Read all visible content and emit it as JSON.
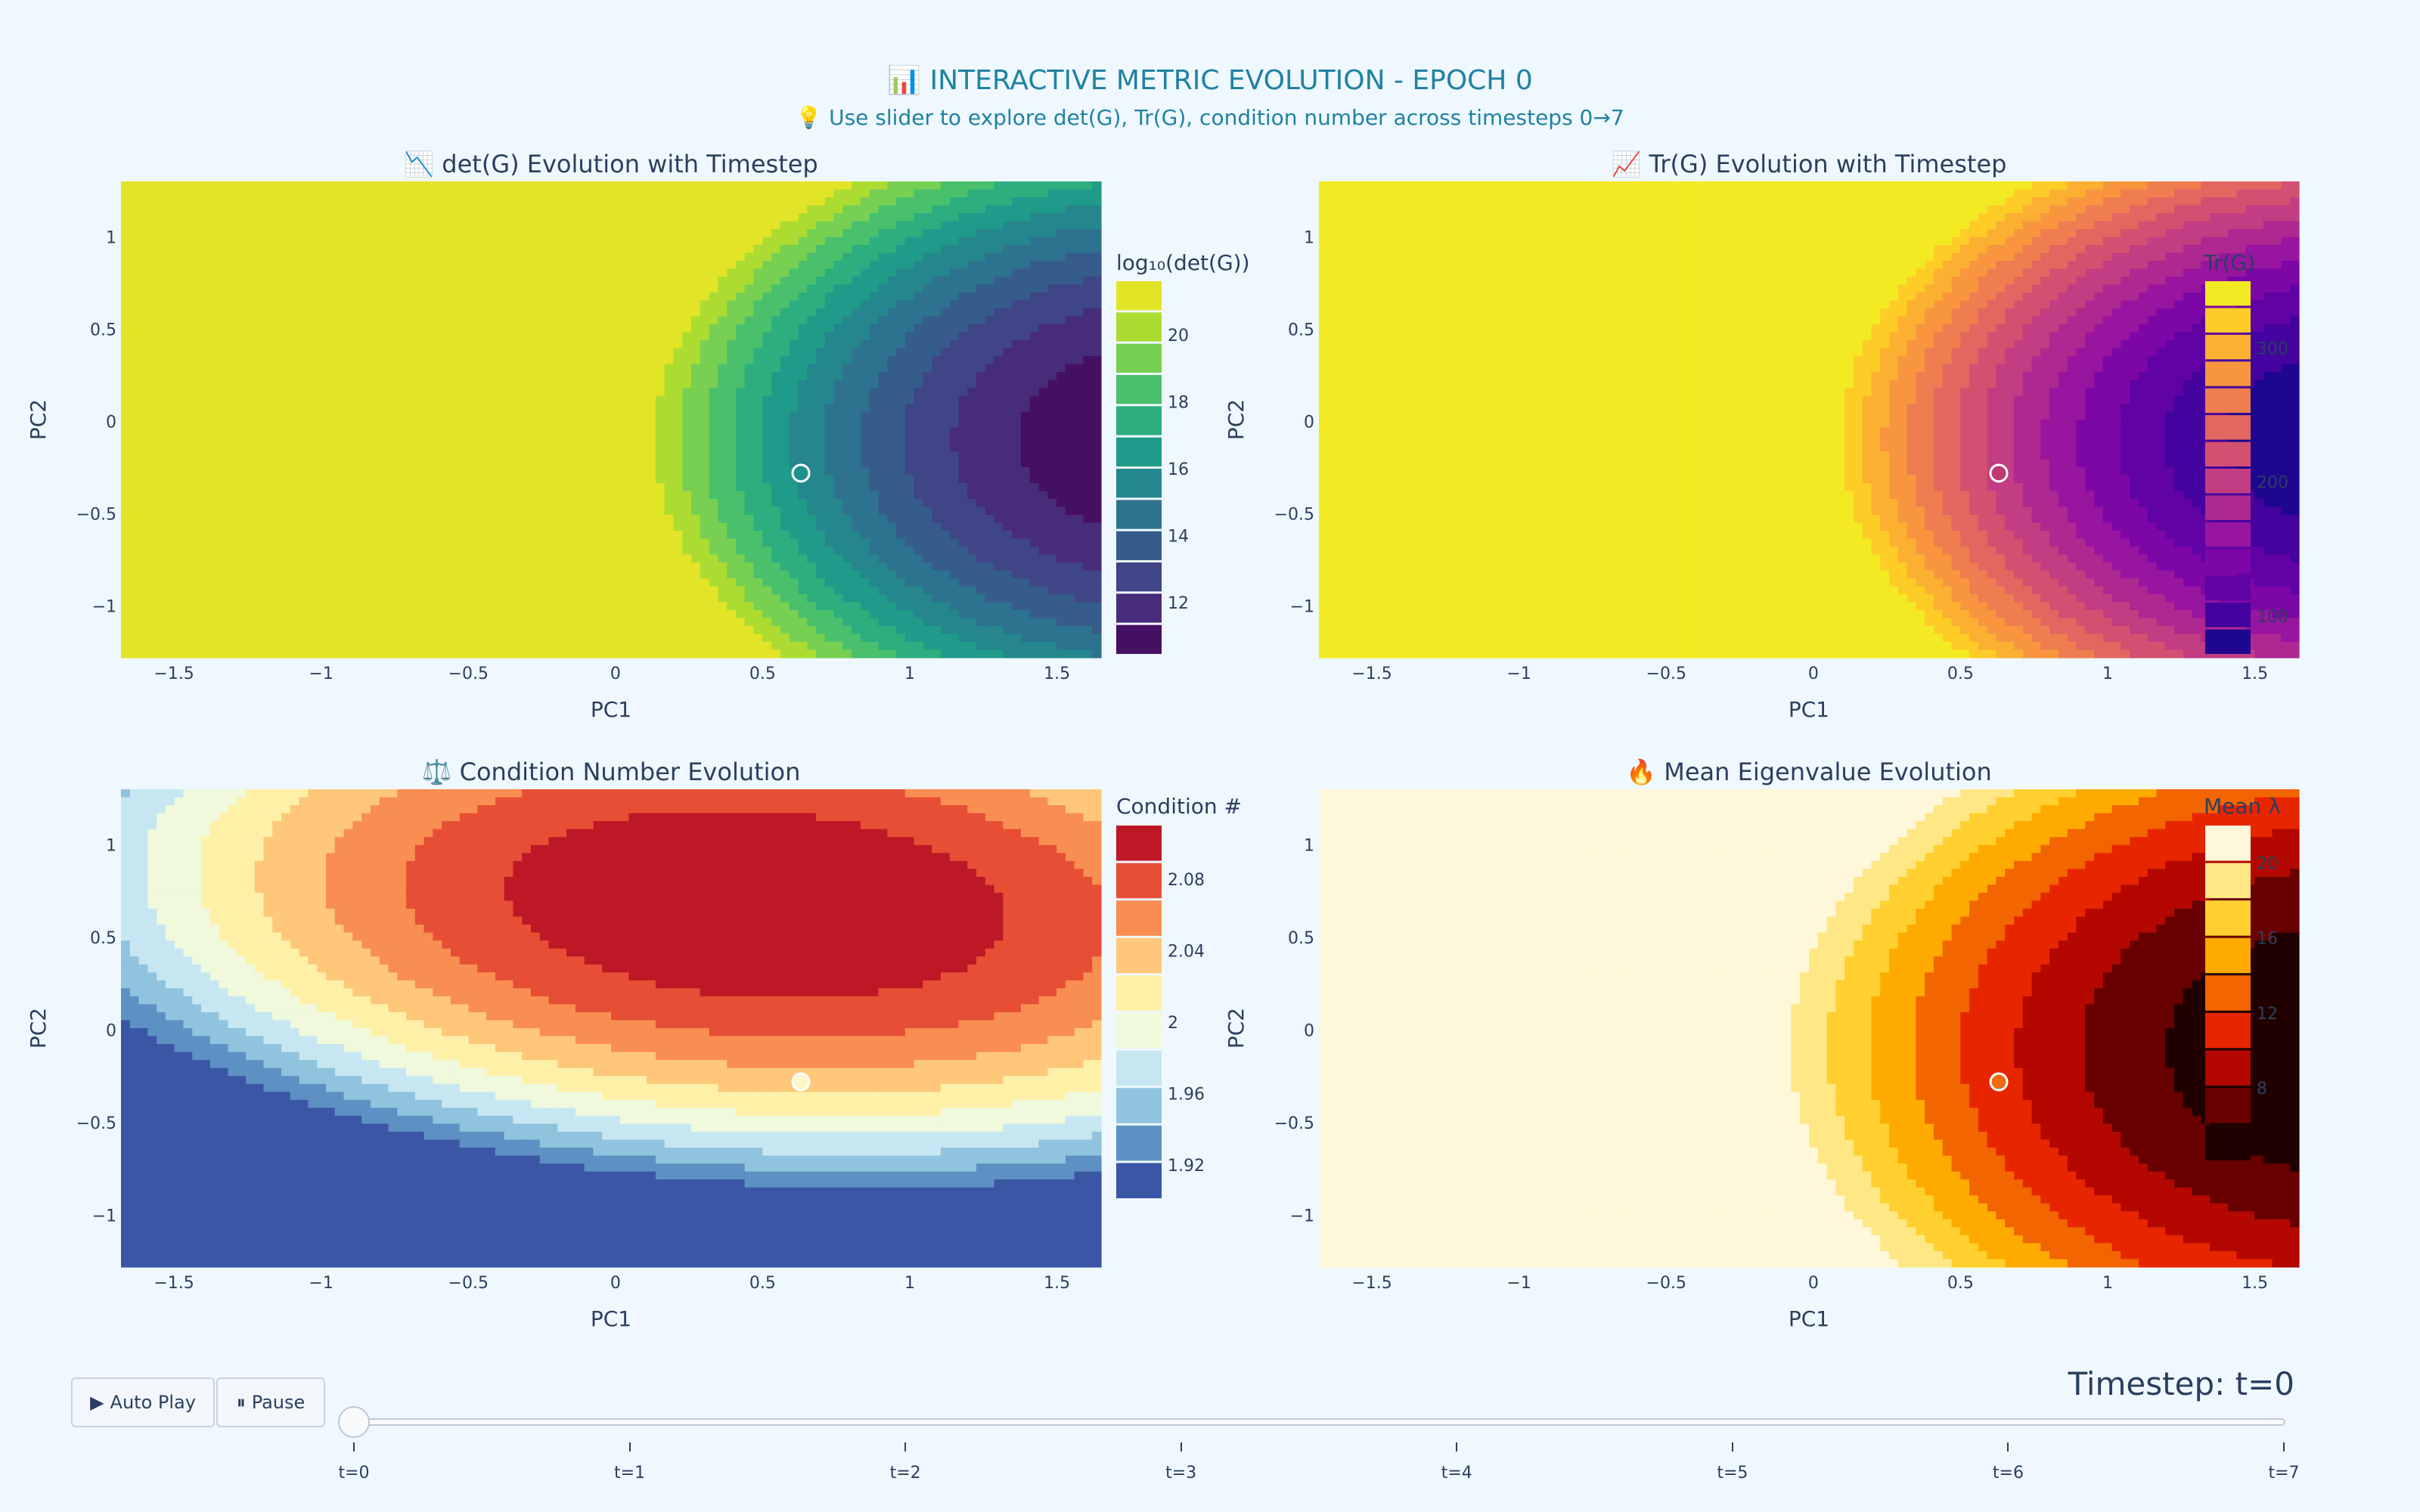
{
  "header": {
    "title": "📊 INTERACTIVE METRIC EVOLUTION - EPOCH 0",
    "subtitle": "💡 Use slider to explore det(G), Tr(G), condition number across timesteps 0→7"
  },
  "controls": {
    "play_icon": "▶",
    "play_label": "Auto Play",
    "pause_icon": "⏸",
    "pause_label": "Pause"
  },
  "slider": {
    "current_value_label": "Timestep: t=0",
    "current_index": 0,
    "steps": [
      "t=0",
      "t=1",
      "t=2",
      "t=3",
      "t=4",
      "t=5",
      "t=6",
      "t=7"
    ]
  },
  "chart_data": [
    {
      "type": "contour",
      "title": "📉 det(G) Evolution with Timestep",
      "xlabel": "PC1",
      "ylabel": "PC2",
      "xlim": [
        -1.68,
        1.65
      ],
      "ylim": [
        -1.28,
        1.3
      ],
      "x_ticks": [
        -1.5,
        -1,
        -0.5,
        0,
        0.5,
        1,
        1.5
      ],
      "x_tick_labels": [
        "−1.5",
        "−1",
        "−0.5",
        "0",
        "0.5",
        "1",
        "1.5"
      ],
      "y_ticks": [
        1,
        0.5,
        0,
        -0.5,
        -1
      ],
      "y_tick_labels": [
        "1",
        "0.5",
        "0",
        "−0.5",
        "−1"
      ],
      "colorscale": "Viridis",
      "colorbar": {
        "title": "log₁₀(det(G))",
        "ticks": [
          20,
          18,
          16,
          14,
          12
        ],
        "range": [
          10.4,
          21.6
        ],
        "levels": 12
      },
      "surface": {
        "kind": "parabolic",
        "min_x": 1.9,
        "center_y": -0.1,
        "y_coef": 1.0,
        "min_value": 10.4,
        "scale": 3.3
      },
      "marker": {
        "x": 0.63,
        "y": -0.28,
        "color": "#21918c"
      }
    },
    {
      "type": "contour",
      "title": "📈 Tr(G) Evolution with Timestep",
      "xlabel": "PC1",
      "ylabel": "PC2",
      "xlim": [
        -1.68,
        1.65
      ],
      "ylim": [
        -1.28,
        1.3
      ],
      "x_ticks": [
        -1.5,
        -1,
        -0.5,
        0,
        0.5,
        1,
        1.5
      ],
      "x_tick_labels": [
        "−1.5",
        "−1",
        "−0.5",
        "0",
        "0.5",
        "1",
        "1.5"
      ],
      "y_ticks": [
        1,
        0.5,
        0,
        -0.5,
        -1
      ],
      "y_tick_labels": [
        "1",
        "0.5",
        "0",
        "−0.5",
        "−1"
      ],
      "colorscale": "Plasma",
      "colorbar": {
        "title": "Tr(G)",
        "ticks": [
          300,
          200,
          100
        ],
        "range": [
          70,
          350
        ],
        "levels": 14
      },
      "surface": {
        "kind": "parabolic",
        "min_x": 1.9,
        "center_y": -0.1,
        "y_coef": 1.0,
        "min_value": 70,
        "scale": 80
      },
      "marker": {
        "x": 0.63,
        "y": -0.28,
        "color": "#c0396f"
      }
    },
    {
      "type": "contour",
      "title": "⚖️ Condition Number Evolution",
      "xlabel": "PC1",
      "ylabel": "PC2",
      "xlim": [
        -1.68,
        1.65
      ],
      "ylim": [
        -1.28,
        1.3
      ],
      "x_ticks": [
        -1.5,
        -1,
        -0.5,
        0,
        0.5,
        1,
        1.5
      ],
      "x_tick_labels": [
        "−1.5",
        "−1",
        "−0.5",
        "0",
        "0.5",
        "1",
        "1.5"
      ],
      "y_ticks": [
        1,
        0.5,
        0,
        -0.5,
        -1
      ],
      "y_tick_labels": [
        "1",
        "0.5",
        "0",
        "−0.5",
        "−1"
      ],
      "colorscale": "RdYlBu_r",
      "colorbar": {
        "title": "Condition #",
        "ticks": [
          2.08,
          2.04,
          2,
          1.96,
          1.92
        ],
        "range": [
          1.9,
          2.11
        ],
        "levels": 10
      },
      "surface": {
        "kind": "elliptic",
        "cx": 0.48,
        "cy": 0.68,
        "a": 0.55,
        "b": 0.33,
        "c": 0.95,
        "d": -0.55,
        "max_value": 2.11
      },
      "marker": {
        "x": 0.63,
        "y": -0.28,
        "color": "#fff7c8"
      }
    },
    {
      "type": "contour",
      "title": "🔥 Mean Eigenvalue Evolution",
      "xlabel": "PC1",
      "ylabel": "PC2",
      "xlim": [
        -1.68,
        1.65
      ],
      "ylim": [
        -1.28,
        1.3
      ],
      "x_ticks": [
        -1.5,
        -1,
        -0.5,
        0,
        0.5,
        1,
        1.5
      ],
      "x_tick_labels": [
        "−1.5",
        "−1",
        "−0.5",
        "0",
        "0.5",
        "1",
        "1.5"
      ],
      "y_ticks": [
        1,
        0.5,
        0,
        -0.5,
        -1
      ],
      "y_tick_labels": [
        "1",
        "0.5",
        "0",
        "−0.5",
        "−1"
      ],
      "colorscale": "Hot",
      "colorbar": {
        "title": "Mean λ",
        "ticks": [
          20,
          16,
          12,
          8
        ],
        "range": [
          4,
          22
        ],
        "levels": 9
      },
      "surface": {
        "kind": "parabolic",
        "min_x": 1.9,
        "center_y": -0.1,
        "y_coef": 1.0,
        "min_value": 4,
        "scale": 4.1
      },
      "marker": {
        "x": 0.63,
        "y": -0.28,
        "color": "#f06a0f"
      }
    }
  ]
}
